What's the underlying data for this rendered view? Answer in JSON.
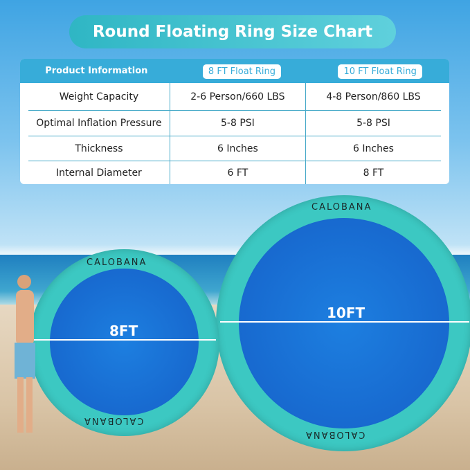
{
  "title": "Round Floating Ring Size Chart",
  "table": {
    "headers": [
      "Product Information",
      "8 FT Float Ring",
      "10 FT Float Ring"
    ],
    "rows": [
      [
        "Weight Capacity",
        "2-6 Person/660 LBS",
        "4-8 Person/860 LBS"
      ],
      [
        "Optimal Inflation Pressure",
        "5-8 PSI",
        "5-8 PSI"
      ],
      [
        "Thickness",
        "6 Inches",
        "6 Inches"
      ],
      [
        "Internal Diameter",
        "6 FT",
        "8 FT"
      ]
    ]
  },
  "rings": {
    "small": {
      "label": "8FT",
      "brand": "CALOBANA"
    },
    "large": {
      "label": "10FT",
      "brand": "CALOBANA"
    }
  },
  "colors": {
    "header": "#37acd9",
    "ring": "#3cc8c2",
    "pool": "#1766d0"
  }
}
